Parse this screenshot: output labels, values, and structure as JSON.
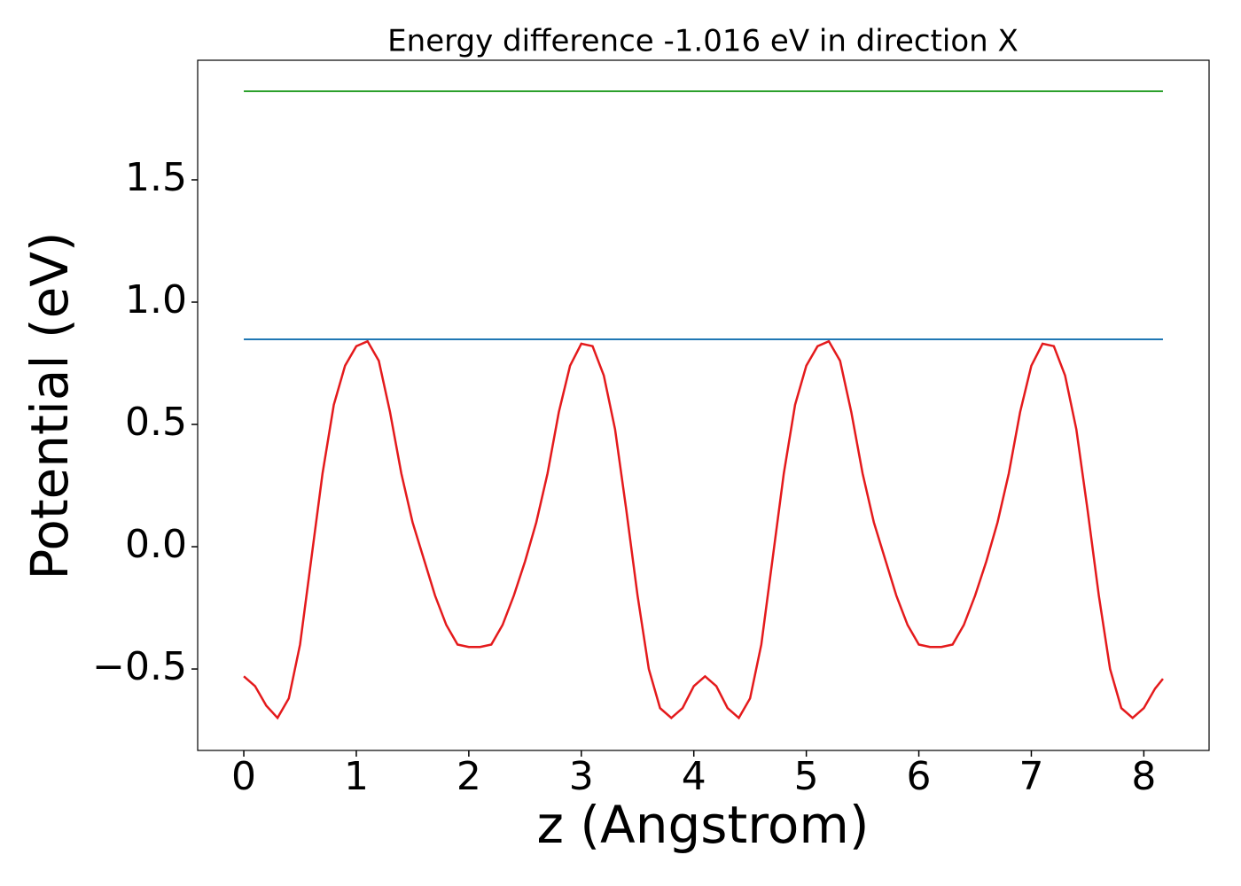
{
  "chart_data": {
    "type": "line",
    "title": "Energy difference -1.016 eV in direction X",
    "x_label": "z (Angstrom)",
    "y_label": "Potential (eV)",
    "xlim": [
      -0.41,
      8.58
    ],
    "ylim": [
      -0.833,
      1.989
    ],
    "xticks": [
      0,
      1,
      2,
      3,
      4,
      5,
      6,
      7,
      8
    ],
    "yticks": [
      {
        "value": -0.5,
        "label": "−0.5"
      },
      {
        "value": 0.0,
        "label": "0.0"
      },
      0.5,
      {
        "value": 1.0,
        "label": "1.0"
      },
      1.5
    ],
    "grid": false,
    "series": [
      {
        "color": "#e41a1c",
        "x": [
          0,
          0.1,
          0.2,
          0.3,
          0.4,
          0.5,
          0.6,
          0.7,
          0.8,
          0.9,
          1.0,
          1.1,
          1.2,
          1.3,
          1.4,
          1.5,
          1.6,
          1.7,
          1.8,
          1.9,
          2.0,
          2.1,
          2.2,
          2.3,
          2.4,
          2.5,
          2.6,
          2.7,
          2.8,
          2.9,
          3.0,
          3.1,
          3.2,
          3.3,
          3.4,
          3.5,
          3.6,
          3.7,
          3.8,
          3.9,
          4.0,
          4.1,
          4.2,
          4.3,
          4.4,
          4.5,
          4.6,
          4.7,
          4.8,
          4.9,
          5.0,
          5.1,
          5.2,
          5.3,
          5.4,
          5.5,
          5.6,
          5.7,
          5.8,
          5.9,
          6.0,
          6.1,
          6.2,
          6.3,
          6.4,
          6.5,
          6.6,
          6.7,
          6.8,
          6.9,
          7.0,
          7.1,
          7.2,
          7.3,
          7.4,
          7.5,
          7.6,
          7.7,
          7.8,
          7.9,
          8.0,
          8.1,
          8.17
        ],
        "values": [
          -0.53,
          -0.57,
          -0.65,
          -0.7,
          -0.62,
          -0.4,
          -0.05,
          0.3,
          0.58,
          0.74,
          0.82,
          0.84,
          0.76,
          0.55,
          0.3,
          0.1,
          -0.05,
          -0.2,
          -0.32,
          -0.4,
          -0.41,
          -0.41,
          -0.4,
          -0.32,
          -0.2,
          -0.06,
          0.1,
          0.3,
          0.55,
          0.74,
          0.83,
          0.82,
          0.7,
          0.48,
          0.15,
          -0.2,
          -0.5,
          -0.66,
          -0.7,
          -0.66,
          -0.57,
          -0.53,
          -0.57,
          -0.66,
          -0.7,
          -0.62,
          -0.4,
          -0.05,
          0.3,
          0.58,
          0.74,
          0.82,
          0.84,
          0.76,
          0.55,
          0.3,
          0.1,
          -0.05,
          -0.2,
          -0.32,
          -0.4,
          -0.41,
          -0.41,
          -0.4,
          -0.32,
          -0.2,
          -0.06,
          0.1,
          0.3,
          0.55,
          0.74,
          0.83,
          0.82,
          0.7,
          0.48,
          0.15,
          -0.2,
          -0.5,
          -0.66,
          -0.7,
          -0.66,
          -0.58,
          -0.54
        ]
      },
      {
        "color": "#1f77b4",
        "x": [
          0,
          8.17
        ],
        "values": [
          0.848,
          0.848
        ]
      },
      {
        "color": "#2ca02c",
        "x": [
          0,
          8.17
        ],
        "values": [
          1.862,
          1.862
        ]
      }
    ]
  }
}
